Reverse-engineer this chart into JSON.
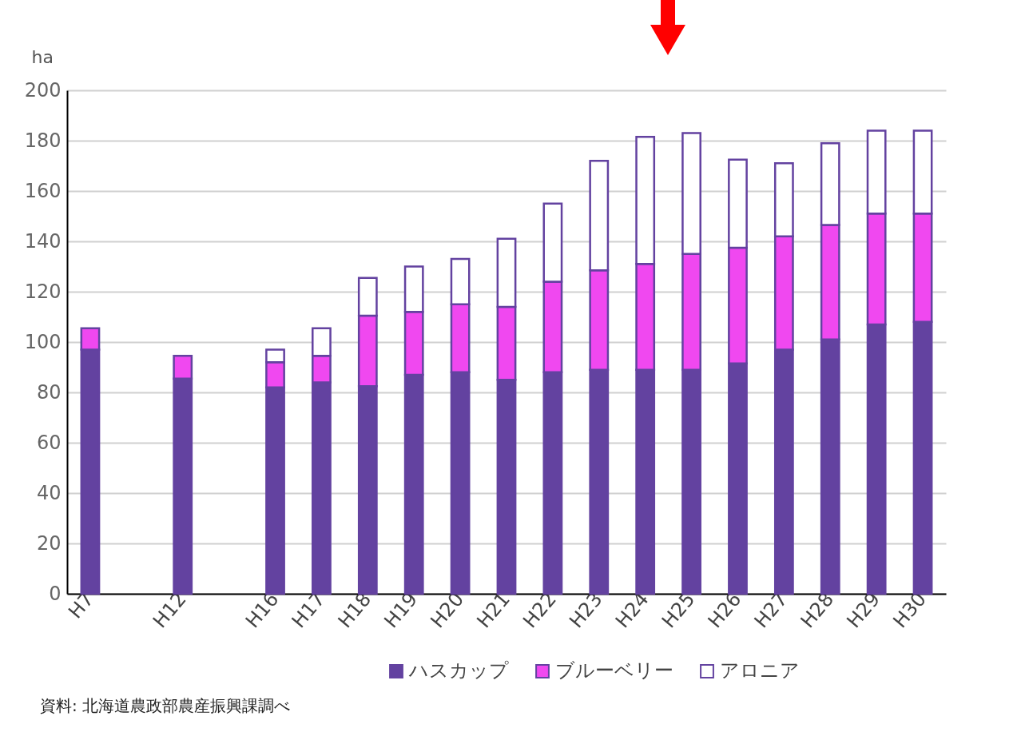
{
  "chart_data": {
    "type": "bar",
    "stacked": true,
    "ylabel": "ha",
    "categories": [
      "H7",
      null,
      "H12",
      null,
      "H16",
      "H17",
      "H18",
      "H19",
      "H20",
      "H21",
      "H22",
      "H23",
      "H24",
      "H25",
      "H26",
      "H27",
      "H28",
      "H29",
      "H30"
    ],
    "series": [
      {
        "name": "ハスカップ",
        "color": "#6342a0",
        "values": [
          97,
          null,
          85.5,
          null,
          82,
          84,
          82.5,
          87,
          88,
          85,
          88,
          89,
          89,
          89,
          91.5,
          97,
          101,
          107,
          108
        ]
      },
      {
        "name": "ブルーベリー",
        "color": "#f048f0",
        "values": [
          8.5,
          null,
          9,
          null,
          10,
          10.5,
          28,
          25,
          27,
          29,
          36,
          39.5,
          42,
          46,
          46,
          45,
          45.5,
          44,
          43
        ]
      },
      {
        "name": "アロニア",
        "color": "#ffffff",
        "values": [
          null,
          null,
          null,
          null,
          5,
          11,
          15,
          18,
          18,
          27,
          31,
          43.5,
          50.5,
          48,
          35,
          29,
          32.5,
          33,
          33
        ]
      }
    ],
    "ylim": [
      0,
      200
    ],
    "yticks": [
      0,
      20,
      40,
      60,
      80,
      100,
      120,
      140,
      160,
      180,
      200
    ],
    "grid": "y",
    "legend": "bottom right",
    "annotations": [
      "資料: 北海道農政部農産振興課調べ"
    ]
  }
}
